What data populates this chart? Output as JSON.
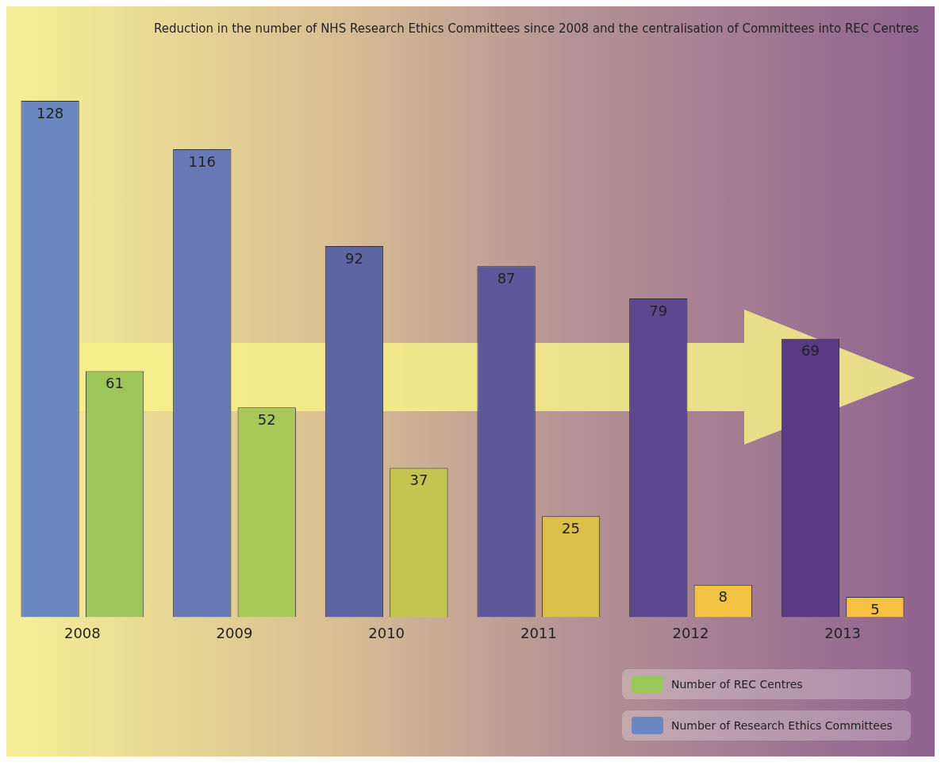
{
  "chart_data": {
    "type": "bar",
    "title": "Reduction in the number of NHS Research Ethics Committees since 2008 and the centralisation of Committees into REC Centres",
    "categories": [
      "2008",
      "2009",
      "2010",
      "2011",
      "2012",
      "2013"
    ],
    "series": [
      {
        "name": "Number of Research Ethics Committees",
        "color": "#6a87bf",
        "colors": [
          "#6a87bf",
          "#6679b5",
          "#5f64a3",
          "#5c589a",
          "#5b4890",
          "#5a3a85"
        ],
        "values": [
          128,
          116,
          92,
          87,
          79,
          69
        ]
      },
      {
        "name": "Number of REC Centres",
        "color": "#9dc65a",
        "colors": [
          "#9dc65a",
          "#a8c95a",
          "#c4c450",
          "#d8c04a",
          "#f2c244",
          "#f8c040"
        ],
        "values": [
          61,
          52,
          37,
          25,
          8,
          5
        ]
      }
    ],
    "data_labels": true,
    "legend": "bottom right",
    "grid": false,
    "tick_labels": "x"
  }
}
